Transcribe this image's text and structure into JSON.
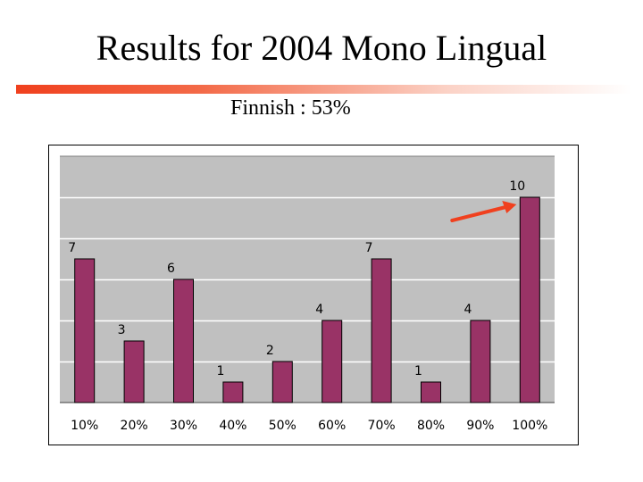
{
  "slide": {
    "title": "Results for 2004 Mono Lingual",
    "subtitle": "Finnish : 53%"
  },
  "colors": {
    "bar": "#993366",
    "plot_background": "#c0c0c0",
    "arrow": "#f0401e",
    "rule": "#f0401e"
  },
  "chart_data": {
    "type": "bar",
    "categories": [
      "10%",
      "20%",
      "30%",
      "40%",
      "50%",
      "60%",
      "70%",
      "80%",
      "90%",
      "100%"
    ],
    "values": [
      7,
      3,
      6,
      1,
      2,
      4,
      7,
      1,
      4,
      10
    ],
    "title": "",
    "xlabel": "",
    "ylabel": "",
    "ylim": [
      0,
      12
    ],
    "grid": true,
    "legend": "none",
    "data_labels": true,
    "annotation": "arrow pointing to the 100% bar"
  }
}
